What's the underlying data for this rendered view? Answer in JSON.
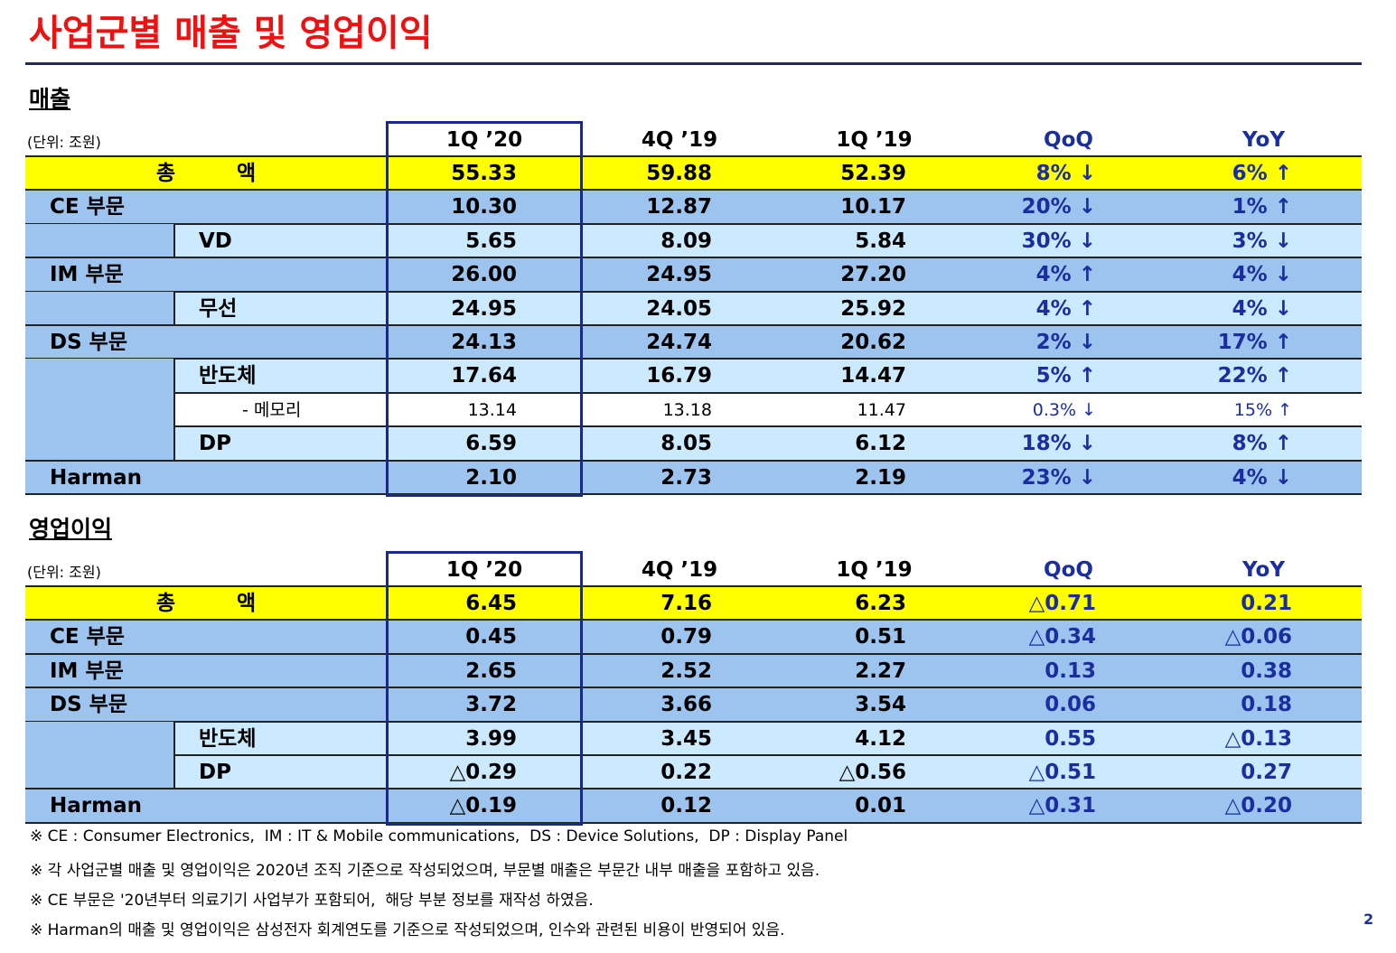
{
  "title": "사업군별 매출 및 영업이익",
  "sections": [
    {
      "heading": "매출",
      "unit": "(단위: 조원)",
      "columns": [
        "1Q ’20",
        "4Q ’19",
        "1Q ’19",
        "QoQ",
        "YoY"
      ],
      "rows": [
        {
          "label": "총 액",
          "level": "total",
          "values": [
            "55.33",
            "59.88",
            "52.39",
            "8% ↓",
            "6% ↑"
          ]
        },
        {
          "label": "CE 부문",
          "level": "section",
          "values": [
            "10.30",
            "12.87",
            "10.17",
            "20% ↓",
            "1% ↑"
          ]
        },
        {
          "label": "VD",
          "level": "sub",
          "values": [
            "5.65",
            "8.09",
            "5.84",
            "30% ↓",
            "3% ↓"
          ]
        },
        {
          "label": "IM 부문",
          "level": "section",
          "values": [
            "26.00",
            "24.95",
            "27.20",
            "4% ↑",
            "4% ↓"
          ]
        },
        {
          "label": "무선",
          "level": "sub",
          "values": [
            "24.95",
            "24.05",
            "25.92",
            "4% ↑",
            "4% ↓"
          ]
        },
        {
          "label": "DS 부문",
          "level": "section",
          "values": [
            "24.13",
            "24.74",
            "20.62",
            "2% ↓",
            "17% ↑"
          ]
        },
        {
          "label": "반도체",
          "level": "sub",
          "values": [
            "17.64",
            "16.79",
            "14.47",
            "5% ↑",
            "22% ↑"
          ]
        },
        {
          "label": "- 메모리",
          "level": "minor",
          "values": [
            "13.14",
            "13.18",
            "11.47",
            "0.3% ↓",
            "15% ↑"
          ]
        },
        {
          "label": "DP",
          "level": "sub",
          "values": [
            "6.59",
            "8.05",
            "6.12",
            "18% ↓",
            "8% ↑"
          ]
        },
        {
          "label": "Harman",
          "level": "section",
          "values": [
            "2.10",
            "2.73",
            "2.19",
            "23% ↓",
            "4% ↓"
          ]
        }
      ]
    },
    {
      "heading": "영업이익",
      "unit": "(단위: 조원)",
      "columns": [
        "1Q ’20",
        "4Q ’19",
        "1Q ’19",
        "QoQ",
        "YoY"
      ],
      "rows": [
        {
          "label": "총 액",
          "level": "total",
          "values": [
            "6.45",
            "7.16",
            "6.23",
            "△0.71",
            "0.21"
          ]
        },
        {
          "label": "CE 부문",
          "level": "section",
          "values": [
            "0.45",
            "0.79",
            "0.51",
            "△0.34",
            "△0.06"
          ]
        },
        {
          "label": "IM 부문",
          "level": "section",
          "values": [
            "2.65",
            "2.52",
            "2.27",
            "0.13",
            "0.38"
          ]
        },
        {
          "label": "DS 부문",
          "level": "section",
          "values": [
            "3.72",
            "3.66",
            "3.54",
            "0.06",
            "0.18"
          ]
        },
        {
          "label": "반도체",
          "level": "sub",
          "values": [
            "3.99",
            "3.45",
            "4.12",
            "0.55",
            "△0.13"
          ]
        },
        {
          "label": "DP",
          "level": "sub",
          "values": [
            "△0.29",
            "0.22",
            "△0.56",
            "△0.51",
            "0.27"
          ]
        },
        {
          "label": "Harman",
          "level": "section",
          "values": [
            "△0.19",
            "0.12",
            "0.01",
            "△0.31",
            "△0.20"
          ]
        }
      ]
    }
  ],
  "notes": [
    "※ CE : Consumer Electronics,  IM : IT & Mobile communications,  DS : Device Solutions,  DP : Display Panel",
    "※ 각 사업군별 매출 및 영업이익은 2020년 조직 기준으로 작성되었으며, 부문별 매출은 부문간 내부 매출을 포함하고 있음.",
    "※ CE 부문은 '20년부터 의료기기 사업부가 포함되어,  해당 부분 정보를 재작성 하였음.",
    "※ Harman의 매출 및 영업이익은 삼성전자 회계연도를 기준으로 작성되었으며, 인수와 관련된 비용이 반영되어 있음."
  ],
  "page_number": "2"
}
